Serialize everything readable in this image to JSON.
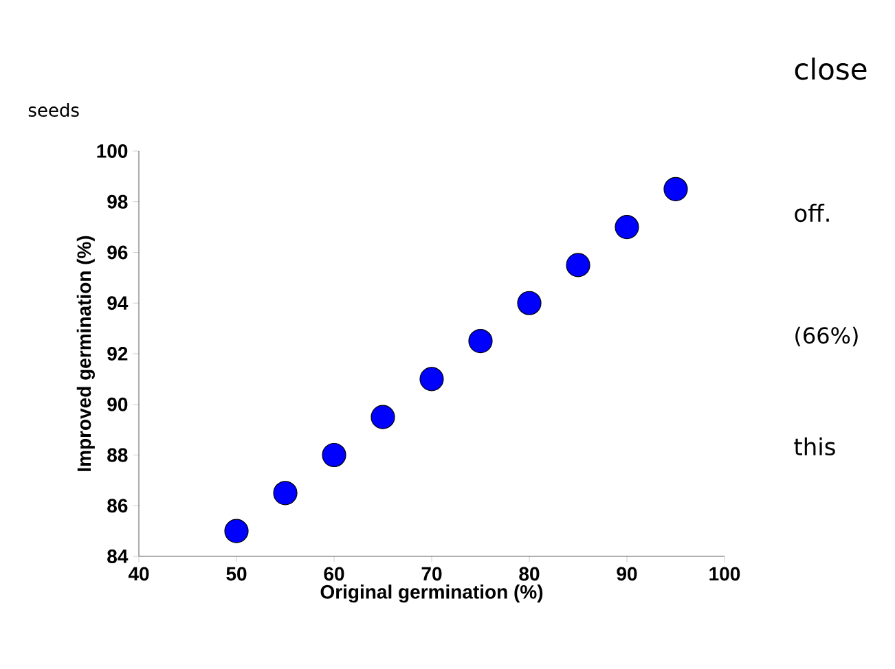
{
  "chart_data": {
    "type": "scatter",
    "xlabel": "Original germination (%)",
    "ylabel": "Improved germination (%)",
    "x": [
      50,
      55,
      60,
      65,
      70,
      75,
      80,
      85,
      90,
      95
    ],
    "series": [
      {
        "color": "#0000ff",
        "values": [
          85,
          86.5,
          88,
          89.5,
          91,
          92.5,
          94,
          95.5,
          97,
          98.5
        ]
      }
    ],
    "xlim": [
      40,
      100
    ],
    "xticks": [
      40,
      50,
      60,
      70,
      80,
      90,
      100
    ],
    "ylim": [
      84,
      100
    ],
    "yticks": [
      84,
      86,
      88,
      90,
      92,
      94,
      96,
      98,
      100
    ],
    "marker": "circle",
    "grid": false,
    "legend": false,
    "annotations": [
      "seeds",
      "close",
      "off.",
      "(66%)",
      "this"
    ]
  }
}
